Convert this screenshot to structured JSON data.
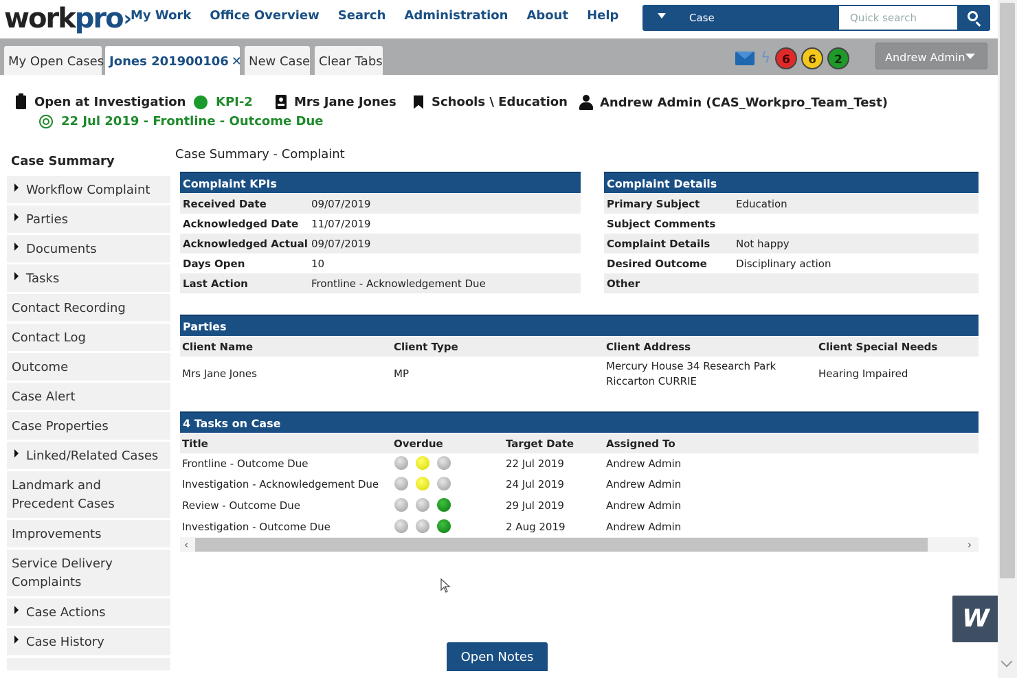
{
  "logo": {
    "part1": "work",
    "part2": "pro",
    "chevron": "›"
  },
  "nav": [
    "My Work",
    "Office Overview",
    "Search",
    "Administration",
    "About",
    "Help"
  ],
  "search": {
    "type": "Case",
    "placeholder": "Quick search"
  },
  "tabs": [
    {
      "label": "My Open Cases"
    },
    {
      "label": "Jones 201900106",
      "close": "✕"
    },
    {
      "label": "New Case"
    },
    {
      "label": "Clear Tabs"
    }
  ],
  "badges": [
    {
      "count": "6",
      "color": "#e02a2a"
    },
    {
      "count": "6",
      "color": "#f4c81a"
    },
    {
      "count": "2",
      "color": "#1f9a2a"
    }
  ],
  "user_menu": "Andrew Admin",
  "case_header": {
    "status": "Open at Investigation",
    "kpi": "KPI-2",
    "client": "Mrs Jane Jones",
    "category": "Schools \\ Education",
    "owner": "Andrew Admin (CAS_Workpro_Team_Test)",
    "due": "22 Jul 2019 - Frontline - Outcome Due"
  },
  "sidebar": {
    "title": "Case Summary",
    "items": [
      {
        "label": "Workflow Complaint",
        "expandable": true
      },
      {
        "label": "Parties",
        "expandable": true
      },
      {
        "label": "Documents",
        "expandable": true
      },
      {
        "label": "Tasks",
        "expandable": true
      },
      {
        "label": "Contact Recording",
        "expandable": false
      },
      {
        "label": "Contact Log",
        "expandable": false
      },
      {
        "label": "Outcome",
        "expandable": false
      },
      {
        "label": "Case Alert",
        "expandable": false
      },
      {
        "label": "Case Properties",
        "expandable": false
      },
      {
        "label": "Linked/Related Cases",
        "expandable": true
      },
      {
        "label": "Landmark and Precedent Cases",
        "expandable": false
      },
      {
        "label": "Improvements",
        "expandable": false
      },
      {
        "label": "Service Delivery Complaints",
        "expandable": false
      },
      {
        "label": "Case Actions",
        "expandable": true
      },
      {
        "label": "Case History",
        "expandable": true
      }
    ]
  },
  "main": {
    "title": "Case Summary - Complaint",
    "kpis": {
      "heading": "Complaint KPIs",
      "rows": [
        {
          "k": "Received Date",
          "v": "09/07/2019"
        },
        {
          "k": "Acknowledged Date",
          "v": "11/07/2019"
        },
        {
          "k": "Acknowledged Actual",
          "v": "09/07/2019"
        },
        {
          "k": "Days Open",
          "v": "10"
        },
        {
          "k": "Last Action",
          "v": "Frontline - Acknowledgement Due"
        }
      ]
    },
    "details": {
      "heading": "Complaint Details",
      "rows": [
        {
          "k": "Primary Subject",
          "v": "Education"
        },
        {
          "k": "Subject Comments",
          "v": ""
        },
        {
          "k": "Complaint Details",
          "v": "Not happy"
        },
        {
          "k": "Desired Outcome",
          "v": "Disciplinary action"
        },
        {
          "k": "Other",
          "v": ""
        }
      ]
    },
    "parties": {
      "heading": "Parties",
      "columns": [
        "Client Name",
        "Client Type",
        "Client Address",
        "Client Special Needs"
      ],
      "row": {
        "name": "Mrs Jane Jones",
        "type": "MP",
        "address1": "Mercury House 34 Research Park",
        "address2": "Riccarton CURRIE",
        "needs": "Hearing Impaired"
      }
    },
    "tasks": {
      "heading": "4 Tasks on Case",
      "columns": [
        "Title",
        "Overdue",
        "Target Date",
        "Assigned To"
      ],
      "rows": [
        {
          "title": "Frontline - Outcome Due",
          "lights": [
            "grey",
            "yellow",
            "grey"
          ],
          "date": "22 Jul 2019",
          "assigned": "Andrew Admin"
        },
        {
          "title": "Investigation - Acknowledgement Due",
          "lights": [
            "grey",
            "yellow",
            "grey"
          ],
          "date": "24 Jul 2019",
          "assigned": "Andrew Admin"
        },
        {
          "title": "Review - Outcome Due",
          "lights": [
            "grey",
            "grey",
            "green"
          ],
          "date": "29 Jul 2019",
          "assigned": "Andrew Admin"
        },
        {
          "title": "Investigation - Outcome Due",
          "lights": [
            "grey",
            "grey",
            "green"
          ],
          "date": "2 Aug 2019",
          "assigned": "Andrew Admin"
        }
      ]
    }
  },
  "open_notes": "Open Notes",
  "corner_badge": "W"
}
